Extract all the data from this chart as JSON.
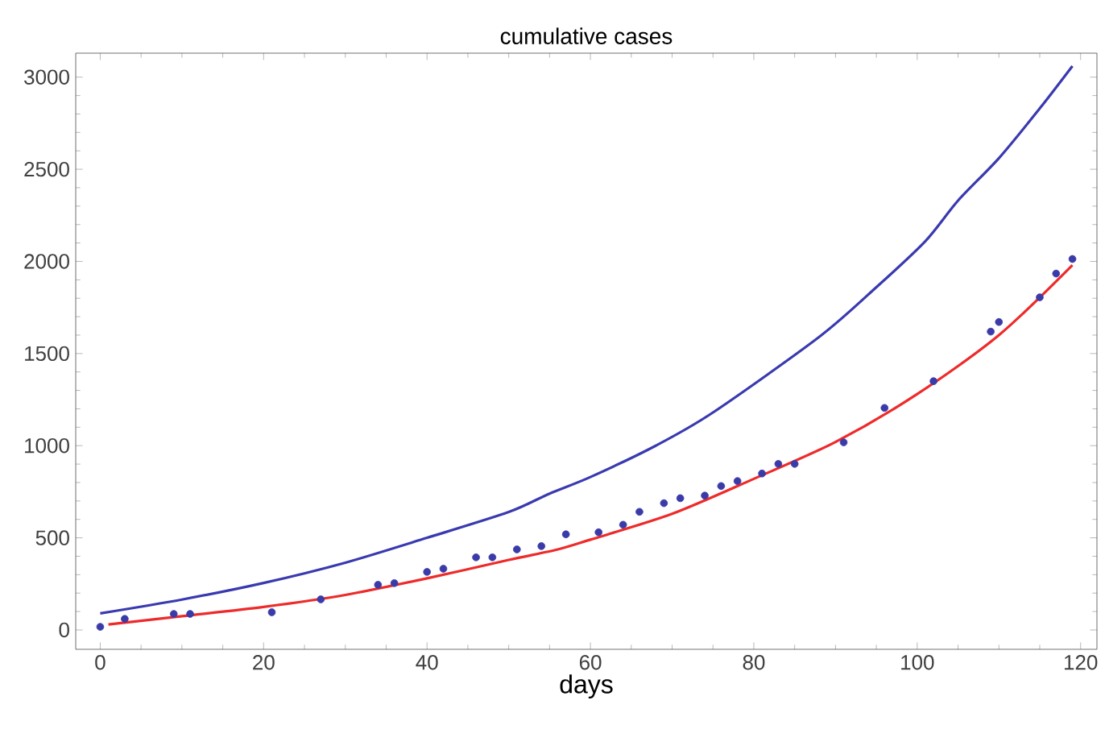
{
  "chart_data": {
    "type": "scatter",
    "title": "cumulative cases",
    "xlabel": "days",
    "xlim": [
      -3,
      122
    ],
    "ylim": [
      -105,
      3130
    ],
    "xticks": [
      0,
      20,
      40,
      60,
      80,
      100,
      120
    ],
    "yticks": [
      0,
      500,
      1000,
      1500,
      2000,
      2500,
      3000
    ],
    "grid": false,
    "series": [
      {
        "type": "line",
        "color": "#3a3ab0",
        "x": [
          0,
          10,
          20,
          30,
          40,
          50,
          55,
          60,
          68,
          75,
          88,
          95,
          101,
          105,
          110,
          115,
          119
        ],
        "values": [
          90,
          165,
          255,
          365,
          500,
          640,
          740,
          830,
          1000,
          1180,
          1590,
          1860,
          2110,
          2330,
          2560,
          2830,
          3060
        ]
      },
      {
        "type": "line",
        "color": "#ee2a2a",
        "x": [
          1,
          10,
          20,
          30,
          40,
          50,
          56,
          60,
          70,
          80,
          90,
          100,
          110,
          119
        ],
        "values": [
          30,
          75,
          125,
          190,
          280,
          380,
          437,
          490,
          630,
          820,
          1020,
          1280,
          1600,
          1980
        ]
      },
      {
        "color": "#3a3aa8",
        "marker": "circle",
        "x": [
          0,
          3,
          9,
          11,
          21,
          27,
          34,
          36,
          40,
          42,
          46,
          48,
          51,
          54,
          57,
          61,
          64,
          66,
          69,
          71,
          74,
          76,
          78,
          81,
          83,
          85,
          91,
          96,
          102,
          109,
          110,
          115,
          117,
          119
        ],
        "values": [
          17,
          60,
          87,
          87,
          96,
          166,
          245,
          254,
          315,
          332,
          394,
          394,
          437,
          455,
          519,
          530,
          571,
          641,
          688,
          715,
          729,
          781,
          808,
          849,
          901,
          901,
          1018,
          1205,
          1350,
          1619,
          1671,
          1805,
          1934,
          2013
        ]
      }
    ]
  }
}
